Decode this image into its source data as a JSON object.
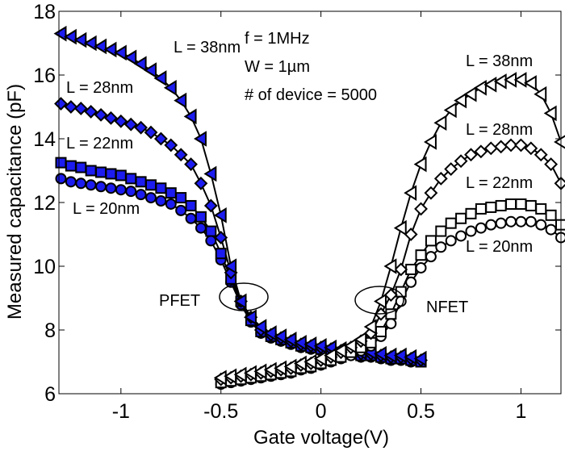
{
  "chart_data": {
    "type": "line",
    "title": "",
    "xlabel": "Gate voltage(V)",
    "ylabel": "Measured capacitance (pF)",
    "xlim": [
      -1.31,
      1.2
    ],
    "ylim": [
      6,
      18
    ],
    "xticks": [
      -1,
      -0.5,
      0,
      0.5,
      1
    ],
    "xtick_labels": [
      "-1",
      "-0.5",
      "0",
      "0.5",
      "1"
    ],
    "yticks": [
      6,
      8,
      10,
      12,
      14,
      16,
      18
    ],
    "ytick_labels": [
      "6",
      "8",
      "10",
      "12",
      "14",
      "16",
      "18"
    ],
    "grid": false,
    "marker_fill_color": "#1c1cf0",
    "line_color": "#000000",
    "annotations": {
      "conditions": [
        "f = 1MHz",
        "W = 1µm",
        "# of device = 5000"
      ],
      "pfet_label": "PFET",
      "nfet_label": "NFET",
      "pfet_series_labels": [
        "L = 38nm",
        "L = 28nm",
        "L = 22nm",
        "L = 20nm"
      ],
      "nfet_series_labels": [
        "L = 38nm",
        "L = 28nm",
        "L = 22nm",
        "L = 20nm"
      ]
    },
    "pfet": {
      "x": [
        -1.3,
        -1.25,
        -1.2,
        -1.15,
        -1.1,
        -1.05,
        -1.0,
        -0.95,
        -0.9,
        -0.85,
        -0.8,
        -0.75,
        -0.7,
        -0.65,
        -0.6,
        -0.55,
        -0.5,
        -0.45,
        -0.4,
        -0.35,
        -0.3,
        -0.25,
        -0.2,
        -0.15,
        -0.1,
        -0.05,
        0,
        0.05,
        0.1,
        0.15,
        0.2,
        0.25,
        0.3,
        0.35,
        0.4,
        0.45,
        0.5
      ],
      "series": [
        {
          "name": "L = 38nm",
          "marker": "triangle-left",
          "filled": true,
          "values": [
            17.3,
            17.2,
            17.1,
            17.0,
            16.9,
            16.8,
            16.7,
            16.55,
            16.35,
            16.15,
            15.9,
            15.6,
            15.2,
            14.7,
            14.0,
            12.9,
            11.6,
            10.0,
            8.9,
            8.4,
            8.1,
            7.9,
            7.8,
            7.7,
            7.6,
            7.55,
            7.5,
            7.45,
            7.4,
            7.35,
            7.3,
            7.3,
            7.25,
            7.2,
            7.2,
            7.15,
            7.1
          ]
        },
        {
          "name": "L = 28nm",
          "marker": "diamond",
          "filled": true,
          "values": [
            15.1,
            15.0,
            14.95,
            14.85,
            14.75,
            14.65,
            14.55,
            14.45,
            14.35,
            14.2,
            14.0,
            13.8,
            13.5,
            13.2,
            12.6,
            11.9,
            10.9,
            9.8,
            8.9,
            8.4,
            8.0,
            7.85,
            7.75,
            7.65,
            7.55,
            7.5,
            7.45,
            7.4,
            7.35,
            7.3,
            7.25,
            7.25,
            7.2,
            7.15,
            7.15,
            7.1,
            7.05
          ]
        },
        {
          "name": "L = 22nm",
          "marker": "square",
          "filled": true,
          "values": [
            13.25,
            13.15,
            13.1,
            13.0,
            12.95,
            12.9,
            12.85,
            12.75,
            12.65,
            12.55,
            12.45,
            12.3,
            12.15,
            11.9,
            11.55,
            11.1,
            10.4,
            9.6,
            8.9,
            8.3,
            7.95,
            7.8,
            7.7,
            7.6,
            7.5,
            7.45,
            7.4,
            7.35,
            7.3,
            7.25,
            7.2,
            7.2,
            7.15,
            7.1,
            7.1,
            7.05,
            7.0
          ]
        },
        {
          "name": "L = 20nm",
          "marker": "circle",
          "filled": true,
          "values": [
            12.75,
            12.65,
            12.6,
            12.55,
            12.5,
            12.45,
            12.4,
            12.35,
            12.25,
            12.15,
            12.05,
            11.95,
            11.75,
            11.5,
            11.2,
            10.8,
            10.2,
            9.5,
            8.8,
            8.25,
            7.9,
            7.75,
            7.65,
            7.55,
            7.45,
            7.4,
            7.35,
            7.3,
            7.25,
            7.2,
            7.15,
            7.15,
            7.1,
            7.05,
            7.05,
            7.0,
            7.0
          ]
        }
      ]
    },
    "nfet": {
      "x": [
        -0.5,
        -0.45,
        -0.4,
        -0.35,
        -0.3,
        -0.25,
        -0.2,
        -0.15,
        -0.1,
        -0.05,
        0,
        0.05,
        0.1,
        0.15,
        0.2,
        0.25,
        0.3,
        0.35,
        0.4,
        0.45,
        0.5,
        0.55,
        0.6,
        0.65,
        0.7,
        0.75,
        0.8,
        0.85,
        0.9,
        0.95,
        1.0,
        1.05,
        1.1,
        1.15,
        1.2
      ],
      "series": [
        {
          "name": "L = 38nm",
          "marker": "triangle-left",
          "filled": false,
          "values": [
            6.5,
            6.55,
            6.6,
            6.65,
            6.7,
            6.75,
            6.8,
            6.85,
            6.95,
            7.0,
            7.1,
            7.2,
            7.35,
            7.5,
            7.7,
            8.1,
            8.9,
            10.0,
            11.2,
            12.3,
            13.2,
            13.9,
            14.5,
            14.9,
            15.2,
            15.4,
            15.6,
            15.7,
            15.8,
            15.85,
            15.85,
            15.75,
            15.4,
            14.8,
            13.9
          ]
        },
        {
          "name": "L = 28nm",
          "marker": "diamond",
          "filled": false,
          "values": [
            6.45,
            6.5,
            6.55,
            6.6,
            6.65,
            6.7,
            6.75,
            6.8,
            6.9,
            6.95,
            7.05,
            7.15,
            7.3,
            7.45,
            7.65,
            7.9,
            8.5,
            9.1,
            9.9,
            11.0,
            11.8,
            12.3,
            12.75,
            13.05,
            13.3,
            13.5,
            13.6,
            13.7,
            13.75,
            13.8,
            13.8,
            13.7,
            13.5,
            13.2,
            12.6
          ]
        },
        {
          "name": "L = 22nm",
          "marker": "square",
          "filled": false,
          "values": [
            6.35,
            6.4,
            6.45,
            6.5,
            6.55,
            6.6,
            6.65,
            6.7,
            6.8,
            6.85,
            6.95,
            7.05,
            7.15,
            7.3,
            7.45,
            7.6,
            7.95,
            8.5,
            9.2,
            9.9,
            10.35,
            10.8,
            11.1,
            11.35,
            11.5,
            11.65,
            11.8,
            11.85,
            11.9,
            11.95,
            11.95,
            11.9,
            11.8,
            11.6,
            11.3
          ]
        },
        {
          "name": "L = 20nm",
          "marker": "circle",
          "filled": false,
          "values": [
            6.3,
            6.35,
            6.4,
            6.45,
            6.5,
            6.55,
            6.6,
            6.65,
            6.75,
            6.8,
            6.9,
            7.0,
            7.1,
            7.2,
            7.35,
            7.5,
            7.8,
            8.2,
            8.9,
            9.5,
            9.95,
            10.3,
            10.6,
            10.8,
            10.95,
            11.1,
            11.2,
            11.3,
            11.35,
            11.4,
            11.4,
            11.4,
            11.3,
            11.15,
            10.9
          ]
        }
      ]
    }
  }
}
